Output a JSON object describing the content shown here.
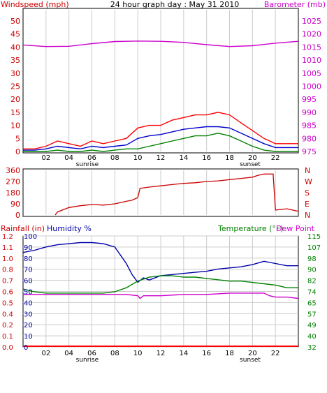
{
  "colors": {
    "wind": "#ff0000",
    "wind_avg": "#0000cc",
    "wind_min": "#008000",
    "barometer": "#cc00cc",
    "direction": "#cc0000",
    "temperature": "#008000",
    "dewpoint": "#cc00cc",
    "humidity": "#0000aa",
    "rainfall": "#ff0000",
    "grid": "#cccccc"
  },
  "chart_data": [
    {
      "type": "line",
      "title": "24 hour graph day : May 31 2010",
      "ylabel_left": "Windspeed (mph)",
      "ylabel_right": "Barometer (mb)",
      "x_ticks": [
        "02",
        "04",
        "06",
        "08",
        "10",
        "12",
        "14",
        "16",
        "18",
        "20",
        "22"
      ],
      "x_annotations": [
        "sunrise",
        "sunset"
      ],
      "ylim_left": [
        0,
        50
      ],
      "y_ticks_left": [
        "0",
        "5",
        "10",
        "15",
        "20",
        "25",
        "30",
        "35",
        "40",
        "45",
        "50"
      ],
      "ylim_right": [
        975,
        1025
      ],
      "y_ticks_right": [
        "975",
        "980",
        "985",
        "990",
        "995",
        "1000",
        "1005",
        "1010",
        "1015",
        "1020",
        "1025"
      ],
      "xlim": [
        0,
        24
      ],
      "grid": true,
      "series": [
        {
          "key": "gust",
          "axis": "left",
          "x": [
            0,
            1,
            2,
            3,
            4,
            5,
            6,
            7,
            8,
            9,
            10,
            11,
            12,
            13,
            14,
            15,
            16,
            17,
            18,
            19,
            20,
            21,
            22,
            23,
            24
          ],
          "values": [
            1,
            1,
            2,
            4,
            3,
            2,
            4,
            3,
            4,
            5,
            9,
            10,
            10,
            12,
            13,
            14,
            14,
            15,
            14,
            11,
            8,
            5,
            3,
            3,
            3
          ]
        },
        {
          "key": "average",
          "axis": "left",
          "x": [
            0,
            1,
            2,
            3,
            4,
            5,
            6,
            7,
            8,
            9,
            10,
            11,
            12,
            13,
            14,
            15,
            16,
            17,
            18,
            19,
            20,
            21,
            22,
            23,
            24
          ],
          "values": [
            0.5,
            0.5,
            1,
            2,
            1.5,
            1,
            2,
            1.5,
            2,
            2.5,
            5,
            6,
            6.5,
            7.5,
            8.5,
            9,
            9.5,
            9.5,
            9,
            7,
            5,
            3,
            1.5,
            1.5,
            1.5
          ]
        },
        {
          "key": "lull",
          "axis": "left",
          "x": [
            0,
            1,
            2,
            3,
            4,
            5,
            6,
            7,
            8,
            9,
            10,
            11,
            12,
            13,
            14,
            15,
            16,
            17,
            18,
            19,
            20,
            21,
            22,
            23,
            24
          ],
          "values": [
            0,
            0,
            0,
            0.5,
            0,
            0,
            0.5,
            0,
            0.5,
            1,
            1,
            2,
            3,
            4,
            5,
            6,
            6,
            7,
            6,
            4,
            2,
            0.5,
            0,
            0,
            0
          ]
        },
        {
          "key": "barometer",
          "axis": "right",
          "x": [
            0,
            2,
            4,
            6,
            8,
            10,
            12,
            14,
            16,
            18,
            20,
            22,
            24
          ],
          "values": [
            1015.8,
            1015.2,
            1015.3,
            1016.3,
            1017.1,
            1017.3,
            1017.2,
            1016.8,
            1015.9,
            1015.2,
            1015.5,
            1016.5,
            1017.2
          ]
        }
      ]
    },
    {
      "type": "line",
      "ylabel_right": [
        "N",
        "W",
        "S",
        "E",
        "N"
      ],
      "ylim": [
        0,
        360
      ],
      "y_ticks": [
        "0",
        "90",
        "180",
        "270",
        "360"
      ],
      "xlim": [
        0,
        24
      ],
      "grid": true,
      "series": [
        {
          "key": "wind-direction",
          "x": [
            2.8,
            3.0,
            4,
            5,
            6,
            7,
            8,
            9,
            9.5,
            10,
            10.2,
            11,
            12,
            13,
            14,
            15,
            16,
            17,
            18,
            19,
            20,
            20.5,
            21,
            21.8,
            22,
            23,
            23.5,
            24
          ],
          "values": [
            0,
            25,
            60,
            75,
            85,
            80,
            90,
            110,
            120,
            140,
            215,
            225,
            235,
            245,
            255,
            260,
            270,
            275,
            285,
            295,
            305,
            320,
            330,
            330,
            40,
            50,
            40,
            30
          ]
        }
      ]
    },
    {
      "type": "line",
      "ylabel_left": "Rainfall (in)",
      "ylabel_left2": "Humidity %",
      "ylabel_right": "Temperature (°F)",
      "ylabel_right2": "Dew Point",
      "x_ticks": [
        "02",
        "04",
        "06",
        "08",
        "10",
        "12",
        "14",
        "16",
        "18",
        "20",
        "22"
      ],
      "x_annotations": [
        "sunrise",
        "sunset"
      ],
      "ylim_humidity": [
        0,
        100
      ],
      "y_ticks_humidity": [
        "0",
        "10",
        "20",
        "30",
        "40",
        "50",
        "60",
        "70",
        "80",
        "90",
        "100"
      ],
      "ylim_rainfall": [
        0,
        1.2
      ],
      "y_ticks_rainfall": [
        "0.0",
        "0.1",
        "0.2",
        "0.4",
        "0.5",
        "0.6",
        "0.7",
        "0.8",
        "1.0",
        "1.1",
        "1.2"
      ],
      "ylim_temperature": [
        32,
        115
      ],
      "y_ticks_temperature": [
        "32",
        "40",
        "49",
        "57",
        "65",
        "74",
        "82",
        "90",
        "98",
        "107",
        "115"
      ],
      "xlim": [
        0,
        24
      ],
      "grid": true,
      "series": [
        {
          "key": "humidity",
          "axis": "humidity",
          "x": [
            0,
            1,
            2,
            3,
            4,
            5,
            6,
            7,
            8,
            9,
            9.5,
            10,
            10.5,
            11,
            12,
            13,
            14,
            15,
            16,
            17,
            18,
            19,
            20,
            21,
            22,
            23,
            24
          ],
          "values": [
            85,
            87,
            90,
            92,
            93,
            94,
            94,
            93,
            90,
            75,
            65,
            58,
            62,
            60,
            64,
            65,
            66,
            67,
            68,
            70,
            71,
            72,
            74,
            77,
            75,
            73,
            73
          ]
        },
        {
          "key": "temperature",
          "axis": "temperature",
          "x": [
            0,
            1,
            2,
            4,
            6,
            7,
            8,
            9,
            10,
            11,
            12,
            13,
            14,
            15,
            16,
            17,
            18,
            19,
            20,
            21,
            22,
            23,
            24
          ],
          "values": [
            75,
            73,
            72,
            72,
            72,
            72,
            73,
            76,
            81,
            84,
            85,
            85,
            84,
            84,
            83,
            82,
            81,
            81,
            80,
            79,
            78,
            76,
            76
          ]
        },
        {
          "key": "dewpoint",
          "axis": "temperature",
          "x": [
            0,
            2,
            4,
            6,
            8,
            9,
            10,
            10.2,
            10.5,
            11,
            12,
            14,
            16,
            18,
            20,
            21,
            21.5,
            22,
            23,
            24
          ],
          "values": [
            71,
            71,
            71,
            71,
            71,
            71,
            70,
            68,
            70,
            70,
            70,
            71,
            71,
            72,
            72,
            72,
            70,
            69,
            69,
            68
          ]
        },
        {
          "key": "rainfall",
          "axis": "rainfall",
          "x": [
            0,
            24
          ],
          "values": [
            0,
            0
          ]
        }
      ]
    }
  ]
}
